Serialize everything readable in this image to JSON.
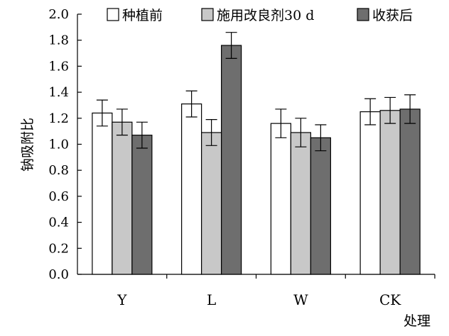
{
  "chart_data": {
    "type": "bar",
    "ylabel": "钠吸附比",
    "xlabel": "处理",
    "ylim": [
      0.0,
      2.0
    ],
    "ytick_step": 0.2,
    "yticks": [
      "0.0",
      "0.2",
      "0.4",
      "0.6",
      "0.8",
      "1.0",
      "1.2",
      "1.4",
      "1.6",
      "1.8",
      "2.0"
    ],
    "categories": [
      "Y",
      "L",
      "W",
      "CK"
    ],
    "legend_position": "top",
    "grid": false,
    "error_bars": true,
    "series": [
      {
        "name": "种植前",
        "color": "#ffffff",
        "values": [
          1.24,
          1.31,
          1.16,
          1.25
        ],
        "errors": [
          0.1,
          0.1,
          0.11,
          0.1
        ]
      },
      {
        "name": "施用改良剂30 d",
        "color": "#c8c8c8",
        "values": [
          1.17,
          1.09,
          1.09,
          1.26
        ],
        "errors": [
          0.1,
          0.1,
          0.11,
          0.1
        ]
      },
      {
        "name": "收获后",
        "color": "#6e6e6e",
        "values": [
          1.07,
          1.76,
          1.05,
          1.27
        ],
        "errors": [
          0.1,
          0.1,
          0.1,
          0.11
        ]
      }
    ]
  }
}
